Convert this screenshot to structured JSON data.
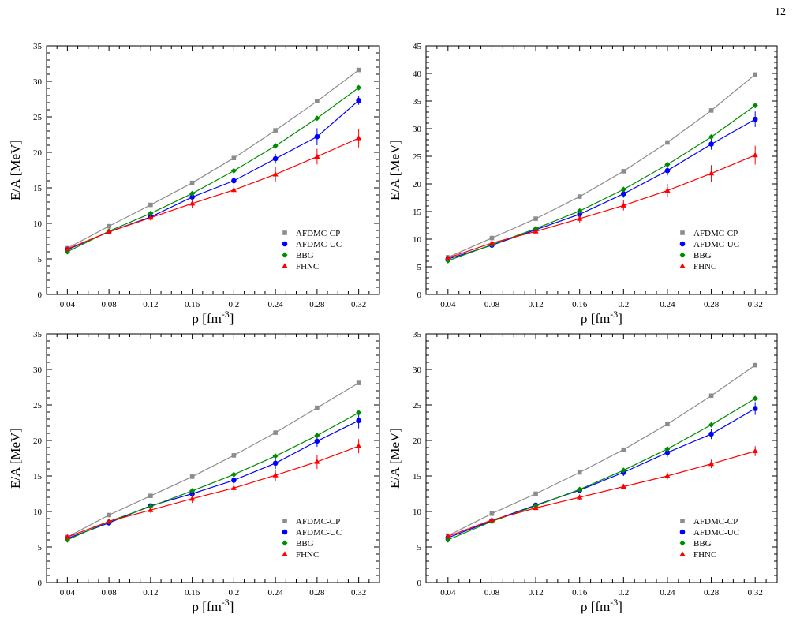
{
  "page": {
    "number": "12"
  },
  "chart_data": [
    {
      "type": "line",
      "xlabel": "ρ [fm",
      "xlabel_sup": "-3",
      "xlabel_tail": "]",
      "ylabel": "E/A [MeV]",
      "xlim": [
        0.02,
        0.34
      ],
      "ylim": [
        0,
        35
      ],
      "xticks": [
        "0.04",
        "0.08",
        "0.12",
        "0.16",
        "0.2",
        "0.24",
        "0.28",
        "0.32"
      ],
      "yticks": [
        "0",
        "5",
        "10",
        "15",
        "20",
        "25",
        "30",
        "35"
      ],
      "legend_position": "bottom-right",
      "x": [
        0.04,
        0.08,
        0.12,
        0.16,
        0.2,
        0.24,
        0.28,
        0.32
      ],
      "series": [
        {
          "name": "AFDMC-CP",
          "color": "#8c8c8c",
          "marker": "square",
          "values": [
            6.5,
            9.6,
            12.6,
            15.7,
            19.2,
            23.1,
            27.2,
            31.6
          ],
          "errors": [
            0,
            0,
            0,
            0,
            0,
            0,
            0,
            0
          ]
        },
        {
          "name": "AFDMC-UC",
          "color": "#0000ff",
          "marker": "circle",
          "values": [
            6.3,
            8.8,
            10.9,
            13.7,
            16.0,
            19.1,
            22.2,
            27.3
          ],
          "errors": [
            0.1,
            0.2,
            0.3,
            0.4,
            0.5,
            0.7,
            1.2,
            0.6
          ]
        },
        {
          "name": "BBG",
          "color": "#008c00",
          "marker": "diamond",
          "values": [
            6.0,
            8.9,
            11.4,
            14.2,
            17.4,
            20.9,
            24.8,
            29.1
          ],
          "errors": [
            0,
            0,
            0,
            0,
            0,
            0,
            0,
            0
          ]
        },
        {
          "name": "FHNC",
          "color": "#ff0000",
          "marker": "triangle",
          "values": [
            6.4,
            8.8,
            10.8,
            12.8,
            14.7,
            16.9,
            19.4,
            22.0
          ],
          "errors": [
            0.1,
            0.2,
            0.4,
            0.6,
            0.7,
            1.0,
            1.1,
            1.3
          ]
        }
      ]
    },
    {
      "type": "line",
      "xlabel": "ρ [fm",
      "xlabel_sup": "-3",
      "xlabel_tail": "]",
      "ylabel": "E/A [MeV]",
      "xlim": [
        0.02,
        0.34
      ],
      "ylim": [
        0,
        45
      ],
      "xticks": [
        "0.04",
        "0.08",
        "0.12",
        "0.16",
        "0.2",
        "0.24",
        "0.28",
        "0.32"
      ],
      "yticks": [
        "0",
        "5",
        "10",
        "15",
        "20",
        "25",
        "30",
        "35",
        "40",
        "45"
      ],
      "legend_position": "bottom-right",
      "x": [
        0.04,
        0.08,
        0.12,
        0.16,
        0.2,
        0.24,
        0.28,
        0.32
      ],
      "series": [
        {
          "name": "AFDMC-CP",
          "color": "#8c8c8c",
          "marker": "square",
          "values": [
            6.7,
            10.2,
            13.7,
            17.7,
            22.3,
            27.5,
            33.3,
            39.8
          ],
          "errors": [
            0,
            0,
            0,
            0,
            0,
            0,
            0,
            0
          ]
        },
        {
          "name": "AFDMC-UC",
          "color": "#0000ff",
          "marker": "circle",
          "values": [
            6.4,
            8.9,
            11.7,
            14.5,
            18.2,
            22.4,
            27.2,
            31.7
          ],
          "errors": [
            0.1,
            0.2,
            0.4,
            0.5,
            0.7,
            0.9,
            1.0,
            1.4
          ]
        },
        {
          "name": "BBG",
          "color": "#008c00",
          "marker": "diamond",
          "values": [
            6.1,
            9.0,
            11.9,
            15.1,
            19.0,
            23.5,
            28.5,
            34.2
          ],
          "errors": [
            0,
            0,
            0,
            0,
            0,
            0,
            0,
            0
          ]
        },
        {
          "name": "FHNC",
          "color": "#ff0000",
          "marker": "triangle",
          "values": [
            6.6,
            9.3,
            11.4,
            13.7,
            16.1,
            18.8,
            21.9,
            25.2
          ],
          "errors": [
            0.2,
            0.3,
            0.5,
            0.7,
            0.9,
            1.2,
            1.5,
            1.7
          ]
        }
      ]
    },
    {
      "type": "line",
      "xlabel": "ρ [fm",
      "xlabel_sup": "-3",
      "xlabel_tail": "]",
      "ylabel": "E/A [MeV]",
      "xlim": [
        0.02,
        0.34
      ],
      "ylim": [
        0,
        35
      ],
      "xticks": [
        "0.04",
        "0.08",
        "0.12",
        "0.16",
        "0.2",
        "0.24",
        "0.28",
        "0.32"
      ],
      "yticks": [
        "0",
        "5",
        "10",
        "15",
        "20",
        "25",
        "30",
        "35"
      ],
      "legend_position": "bottom-right",
      "x": [
        0.04,
        0.08,
        0.12,
        0.16,
        0.2,
        0.24,
        0.28,
        0.32
      ],
      "series": [
        {
          "name": "AFDMC-CP",
          "color": "#8c8c8c",
          "marker": "square",
          "values": [
            6.4,
            9.5,
            12.2,
            14.9,
            17.9,
            21.1,
            24.6,
            28.1
          ],
          "errors": [
            0,
            0,
            0,
            0,
            0,
            0,
            0,
            0
          ]
        },
        {
          "name": "AFDMC-UC",
          "color": "#0000ff",
          "marker": "circle",
          "values": [
            6.2,
            8.4,
            10.8,
            12.5,
            14.4,
            16.8,
            19.9,
            22.8
          ],
          "errors": [
            0.1,
            0.2,
            0.3,
            0.5,
            0.6,
            0.8,
            0.8,
            1.1
          ]
        },
        {
          "name": "BBG",
          "color": "#008c00",
          "marker": "diamond",
          "values": [
            6.0,
            8.6,
            10.7,
            12.9,
            15.2,
            17.8,
            20.7,
            23.9
          ],
          "errors": [
            0,
            0,
            0,
            0,
            0,
            0,
            0,
            0
          ]
        },
        {
          "name": "FHNC",
          "color": "#ff0000",
          "marker": "triangle",
          "values": [
            6.4,
            8.6,
            10.2,
            11.8,
            13.3,
            15.1,
            17.0,
            19.2
          ],
          "errors": [
            0.1,
            0.2,
            0.4,
            0.6,
            0.7,
            0.8,
            1.0,
            1.0
          ]
        }
      ]
    },
    {
      "type": "line",
      "xlabel": "ρ [fm",
      "xlabel_sup": "-3",
      "xlabel_tail": "]",
      "ylabel": "E/A [MeV]",
      "xlim": [
        0.02,
        0.34
      ],
      "ylim": [
        0,
        35
      ],
      "xticks": [
        "0.04",
        "0.08",
        "0.12",
        "0.16",
        "0.2",
        "0.24",
        "0.28",
        "0.32"
      ],
      "yticks": [
        "0",
        "5",
        "10",
        "15",
        "20",
        "25",
        "30",
        "35"
      ],
      "legend_position": "bottom-right",
      "x": [
        0.04,
        0.08,
        0.12,
        0.16,
        0.2,
        0.24,
        0.28,
        0.32
      ],
      "series": [
        {
          "name": "AFDMC-CP",
          "color": "#8c8c8c",
          "marker": "square",
          "values": [
            6.6,
            9.7,
            12.5,
            15.5,
            18.7,
            22.3,
            26.3,
            30.6
          ],
          "errors": [
            0,
            0,
            0,
            0,
            0,
            0,
            0,
            0
          ]
        },
        {
          "name": "AFDMC-UC",
          "color": "#0000ff",
          "marker": "circle",
          "values": [
            6.3,
            8.7,
            10.9,
            13.0,
            15.5,
            18.3,
            20.9,
            24.5
          ],
          "errors": [
            0.1,
            0.2,
            0.3,
            0.4,
            0.5,
            0.6,
            0.7,
            0.9
          ]
        },
        {
          "name": "BBG",
          "color": "#008c00",
          "marker": "diamond",
          "values": [
            6.0,
            8.6,
            10.8,
            13.1,
            15.8,
            18.8,
            22.2,
            25.9
          ],
          "errors": [
            0,
            0,
            0,
            0,
            0,
            0,
            0,
            0
          ]
        },
        {
          "name": "FHNC",
          "color": "#ff0000",
          "marker": "triangle",
          "values": [
            6.5,
            8.8,
            10.5,
            12.0,
            13.5,
            15.0,
            16.7,
            18.5
          ],
          "errors": [
            0.1,
            0.2,
            0.3,
            0.4,
            0.4,
            0.5,
            0.6,
            0.7
          ]
        }
      ]
    }
  ]
}
